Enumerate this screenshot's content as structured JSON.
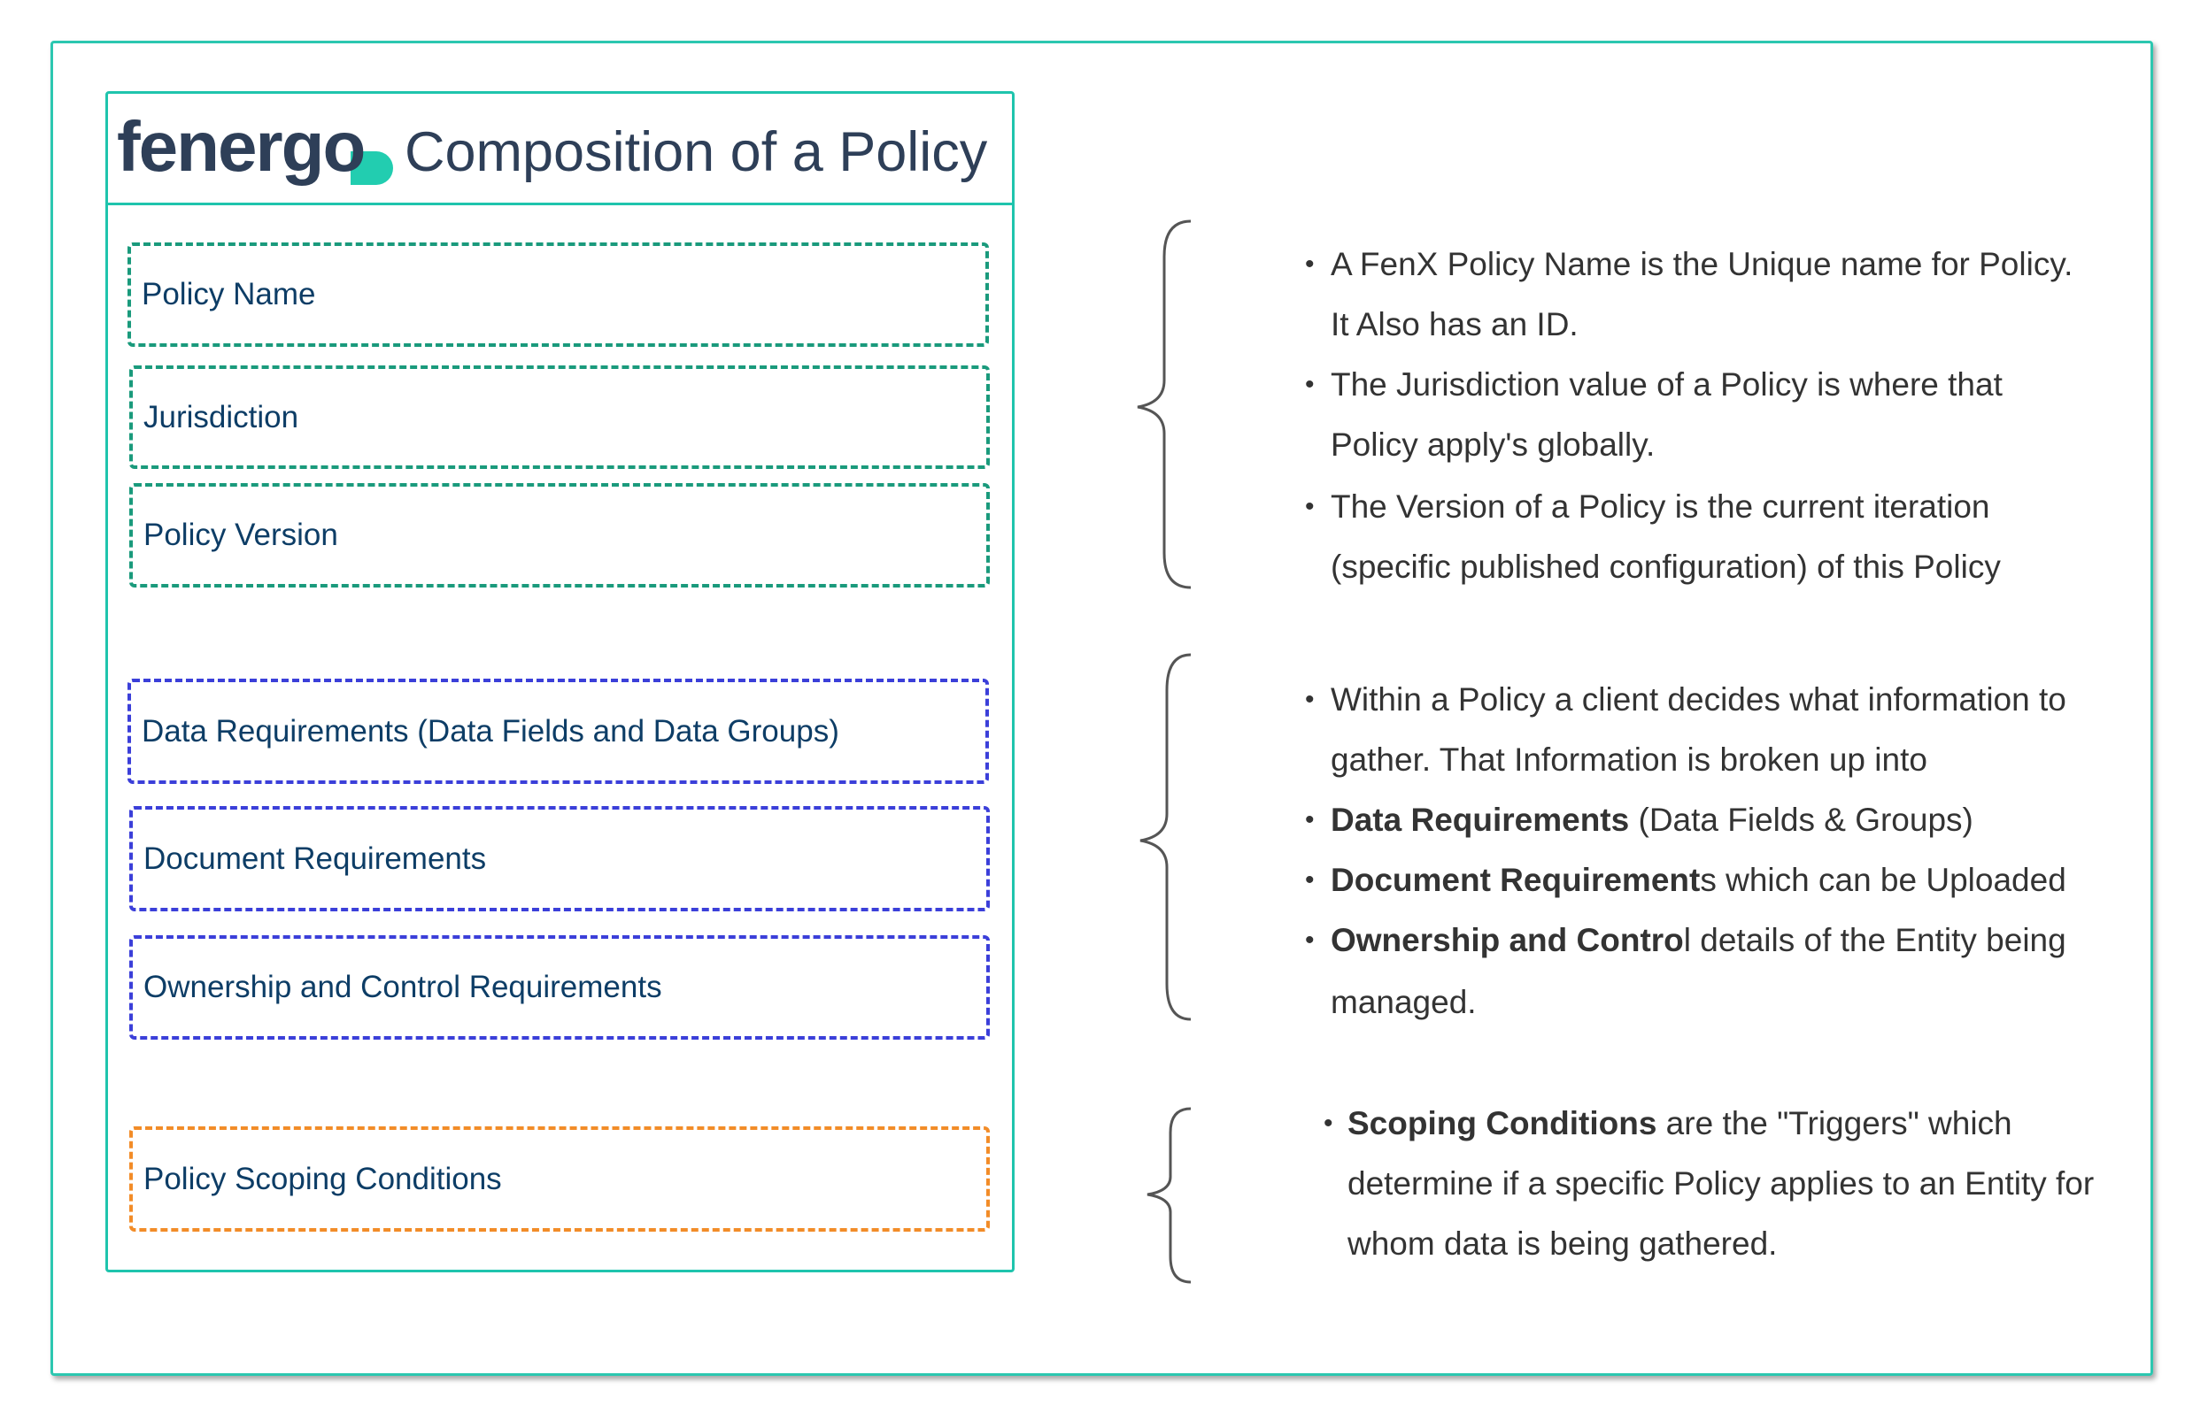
{
  "header": {
    "logo": "fenergo",
    "title": "Composition of a Policy"
  },
  "boxes": [
    "Policy Name",
    "Jurisdiction",
    "Policy Version",
    "Data Requirements (Data Fields and Data Groups)",
    "Document Requirements",
    "Ownership and Control Requirements",
    "Policy Scoping Conditions"
  ],
  "colors": {
    "frame": "#2cc7b0",
    "identity_group": "#1a9a7c",
    "requirements_group": "#3b3fd9",
    "scoping_group": "#f28c28",
    "label_text": "#0d3d66"
  },
  "notes": {
    "g1": [
      "A FenX Policy Name is the Unique name for Policy.",
      "It Also has an ID.",
      "The Jurisdiction value of a Policy is where that",
      "Policy apply's globally.",
      "The Version of a Policy is the current iteration",
      "(specific published configuration) of this Policy"
    ],
    "g2": {
      "l1": "Within a Policy a client decides what information to",
      "l2": "gather. That Information is broken up into",
      "l3b": "Data Requirements",
      "l3": " (Data Fields & Groups)",
      "l4b": "Document Requirement",
      "l4": "s which can be Uploaded",
      "l5b": "Ownership and Contro",
      "l5": "l details of the Entity being",
      "l6": "managed."
    },
    "g3": {
      "l1b": "Scoping Conditions",
      "l1": " are the \"Triggers\" which",
      "l2": "determine if a specific Policy applies to an Entity for",
      "l3": "whom data is being gathered."
    }
  }
}
